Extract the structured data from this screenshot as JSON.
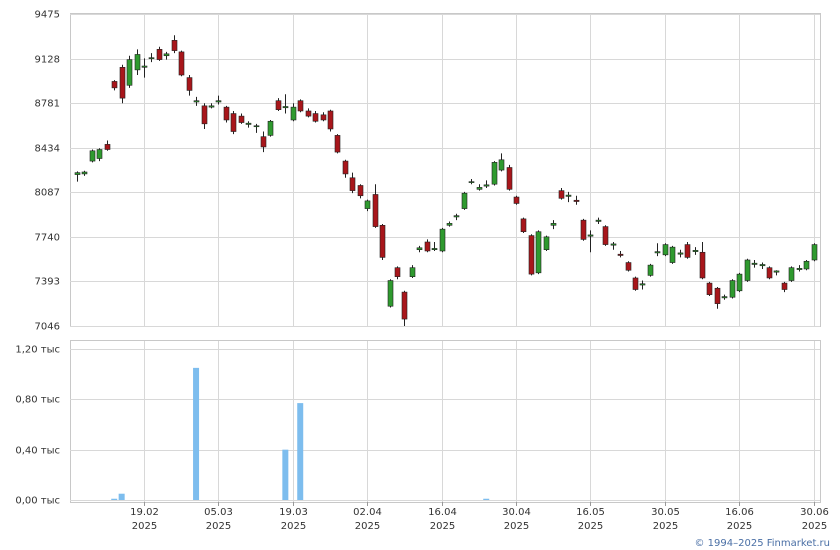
{
  "chart_data": {
    "type": "candlestick",
    "x": [
      "2025-02-06",
      "2025-02-07",
      "2025-02-10",
      "2025-02-11",
      "2025-02-12",
      "2025-02-13",
      "2025-02-14",
      "2025-02-17",
      "2025-02-18",
      "2025-02-19",
      "2025-02-20",
      "2025-02-21",
      "2025-02-24",
      "2025-02-25",
      "2025-02-26",
      "2025-02-27",
      "2025-02-28",
      "2025-03-03",
      "2025-03-04",
      "2025-03-05",
      "2025-03-06",
      "2025-03-07",
      "2025-03-10",
      "2025-03-11",
      "2025-03-12",
      "2025-03-13",
      "2025-03-14",
      "2025-03-17",
      "2025-03-18",
      "2025-03-19",
      "2025-03-20",
      "2025-03-21",
      "2025-03-24",
      "2025-03-25",
      "2025-03-26",
      "2025-03-27",
      "2025-03-28",
      "2025-03-31",
      "2025-04-01",
      "2025-04-02",
      "2025-04-03",
      "2025-04-04",
      "2025-04-07",
      "2025-04-08",
      "2025-04-09",
      "2025-04-10",
      "2025-04-11",
      "2025-04-14",
      "2025-04-15",
      "2025-04-16",
      "2025-04-17",
      "2025-04-18",
      "2025-04-21",
      "2025-04-22",
      "2025-04-23",
      "2025-04-24",
      "2025-04-25",
      "2025-04-28",
      "2025-04-29",
      "2025-04-30",
      "2025-05-02",
      "2025-05-05",
      "2025-05-06",
      "2025-05-07",
      "2025-05-08",
      "2025-05-12",
      "2025-05-13",
      "2025-05-14",
      "2025-05-15",
      "2025-05-16",
      "2025-05-19",
      "2025-05-20",
      "2025-05-21",
      "2025-05-22",
      "2025-05-23",
      "2025-05-26",
      "2025-05-27",
      "2025-05-28",
      "2025-05-29",
      "2025-05-30",
      "2025-06-02",
      "2025-06-03",
      "2025-06-04",
      "2025-06-05",
      "2025-06-06",
      "2025-06-09",
      "2025-06-10",
      "2025-06-11",
      "2025-06-13",
      "2025-06-16",
      "2025-06-17",
      "2025-06-18",
      "2025-06-19",
      "2025-06-20",
      "2025-06-23",
      "2025-06-24",
      "2025-06-25",
      "2025-06-26",
      "2025-06-27",
      "2025-06-30"
    ],
    "open": [
      8225,
      8230,
      8330,
      8350,
      8460,
      8950,
      9060,
      8920,
      9040,
      9060,
      9130,
      9200,
      9150,
      9270,
      9180,
      8980,
      8790,
      8760,
      8750,
      8790,
      8750,
      8700,
      8680,
      8615,
      8600,
      8520,
      8530,
      8800,
      8745,
      8650,
      8800,
      8720,
      8700,
      8690,
      8720,
      8530,
      8330,
      8200,
      8140,
      7960,
      8070,
      7830,
      7200,
      7500,
      7310,
      7430,
      7640,
      7700,
      7640,
      7630,
      7830,
      7895,
      7960,
      8165,
      8110,
      8135,
      8150,
      8260,
      8280,
      8050,
      7880,
      7750,
      7460,
      7640,
      7830,
      8100,
      8055,
      8025,
      7870,
      7745,
      7860,
      7820,
      7675,
      7605,
      7540,
      7420,
      7365,
      7440,
      7615,
      7600,
      7540,
      7605,
      7680,
      7625,
      7620,
      7380,
      7340,
      7265,
      7270,
      7320,
      7400,
      7525,
      7515,
      7500,
      7465,
      7380,
      7400,
      7485,
      7490,
      7560
    ],
    "high": [
      8250,
      8255,
      8420,
      8430,
      8490,
      8960,
      9080,
      9150,
      9200,
      9130,
      9170,
      9220,
      9180,
      9310,
      9190,
      9000,
      8830,
      8780,
      8780,
      8840,
      8760,
      8720,
      8700,
      8640,
      8620,
      8560,
      8650,
      8820,
      8850,
      8780,
      8810,
      8740,
      8720,
      8710,
      8730,
      8540,
      8340,
      8240,
      8150,
      8030,
      8150,
      7840,
      7410,
      7510,
      7320,
      7520,
      7670,
      7720,
      7700,
      7810,
      7860,
      7920,
      8090,
      8190,
      8150,
      8180,
      8330,
      8390,
      8300,
      8060,
      7890,
      7760,
      7790,
      7750,
      7870,
      8120,
      8090,
      8060,
      7880,
      7790,
      7890,
      7830,
      7700,
      7630,
      7550,
      7430,
      7400,
      7530,
      7690,
      7690,
      7670,
      7640,
      7700,
      7660,
      7700,
      7390,
      7350,
      7290,
      7410,
      7460,
      7570,
      7560,
      7540,
      7510,
      7480,
      7390,
      7510,
      7520,
      7560,
      7690
    ],
    "low": [
      8170,
      8215,
      8320,
      8330,
      8410,
      8880,
      8780,
      8900,
      9000,
      8980,
      9100,
      9110,
      9120,
      9170,
      8990,
      8840,
      8760,
      8580,
      8740,
      8770,
      8630,
      8540,
      8620,
      8590,
      8550,
      8400,
      8520,
      8720,
      8700,
      8640,
      8710,
      8670,
      8630,
      8640,
      8560,
      8390,
      8200,
      8080,
      8040,
      7940,
      7810,
      7560,
      7190,
      7410,
      7046,
      7420,
      7620,
      7620,
      7630,
      7620,
      7820,
      7870,
      7950,
      8150,
      8100,
      8120,
      8140,
      8250,
      8100,
      7990,
      7770,
      7440,
      7450,
      7630,
      7800,
      8030,
      8010,
      7990,
      7710,
      7620,
      7840,
      7670,
      7640,
      7580,
      7470,
      7320,
      7330,
      7430,
      7590,
      7590,
      7530,
      7580,
      7570,
      7600,
      7410,
      7280,
      7180,
      7250,
      7260,
      7310,
      7390,
      7500,
      7490,
      7410,
      7440,
      7310,
      7390,
      7470,
      7480,
      7550
    ],
    "close": [
      8240,
      8245,
      8410,
      8420,
      8420,
      8900,
      8820,
      9120,
      9160,
      9070,
      9135,
      9120,
      9165,
      9190,
      9000,
      8880,
      8800,
      8620,
      8760,
      8800,
      8650,
      8560,
      8630,
      8625,
      8605,
      8440,
      8640,
      8730,
      8755,
      8750,
      8720,
      8680,
      8640,
      8650,
      8580,
      8400,
      8230,
      8100,
      8060,
      8020,
      7820,
      7580,
      7400,
      7430,
      7100,
      7500,
      7655,
      7630,
      7650,
      7800,
      7845,
      7905,
      8080,
      8170,
      8125,
      8145,
      8320,
      8340,
      8110,
      8000,
      7780,
      7450,
      7780,
      7740,
      7845,
      8040,
      8065,
      8015,
      7720,
      7755,
      7870,
      7680,
      7685,
      7595,
      7480,
      7330,
      7375,
      7520,
      7625,
      7680,
      7660,
      7615,
      7580,
      7635,
      7420,
      7290,
      7220,
      7275,
      7400,
      7450,
      7560,
      7535,
      7525,
      7420,
      7475,
      7330,
      7500,
      7495,
      7550,
      7680
    ],
    "up_color": "#2f9a2f",
    "down_color": "#a8161b",
    "ylim": [
      7046,
      9475
    ],
    "yticks": [
      7046,
      7393,
      7740,
      8087,
      8434,
      8781,
      9128,
      9475
    ],
    "xticks": [
      {
        "value": "2025-02-19",
        "label": [
          "19.02",
          "2025"
        ]
      },
      {
        "value": "2025-03-05",
        "label": [
          "05.03",
          "2025"
        ]
      },
      {
        "value": "2025-03-19",
        "label": [
          "19.03",
          "2025"
        ]
      },
      {
        "value": "2025-04-02",
        "label": [
          "02.04",
          "2025"
        ]
      },
      {
        "value": "2025-04-16",
        "label": [
          "16.04",
          "2025"
        ]
      },
      {
        "value": "2025-04-30",
        "label": [
          "30.04",
          "2025"
        ]
      },
      {
        "value": "2025-05-16",
        "label": [
          "16.05",
          "2025"
        ]
      },
      {
        "value": "2025-05-30",
        "label": [
          "30.05",
          "2025"
        ]
      },
      {
        "value": "2025-06-16",
        "label": [
          "16.06",
          "2025"
        ]
      },
      {
        "value": "2025-06-30",
        "label": [
          "30.06",
          "2025"
        ]
      }
    ],
    "grid": true,
    "volume": {
      "color": "#7dbdee",
      "values": [
        0,
        0,
        0,
        0,
        0,
        0.01,
        0.05,
        0,
        0,
        0,
        0,
        0,
        0,
        0,
        0,
        0,
        1.05,
        0,
        0,
        0,
        0,
        0,
        0,
        0,
        0,
        0,
        0,
        0,
        0.4,
        0,
        0.77,
        0,
        0,
        0,
        0,
        0,
        0,
        0,
        0,
        0,
        0,
        0,
        0,
        0,
        0,
        0,
        0,
        0,
        0,
        0,
        0,
        0,
        0,
        0,
        0,
        0.01,
        0,
        0,
        0,
        0,
        0,
        0,
        0,
        0,
        0,
        0,
        0,
        0,
        0,
        0,
        0,
        0,
        0,
        0,
        0,
        0,
        0,
        0,
        0,
        0,
        0,
        0,
        0,
        0,
        0,
        0,
        0,
        0,
        0,
        0,
        0,
        0,
        0,
        0,
        0,
        0,
        0,
        0,
        0,
        0
      ],
      "ylim": [
        0,
        1.2
      ],
      "yticks": [
        {
          "value": 0,
          "label": "0,00 тыс"
        },
        {
          "value": 0.4,
          "label": "0,40 тыс"
        },
        {
          "value": 0.8,
          "label": "0,80 тыс"
        },
        {
          "value": 1.2,
          "label": "1,20 тыс"
        }
      ]
    },
    "credit": "© 1994–2025 Finmarket.ru"
  }
}
